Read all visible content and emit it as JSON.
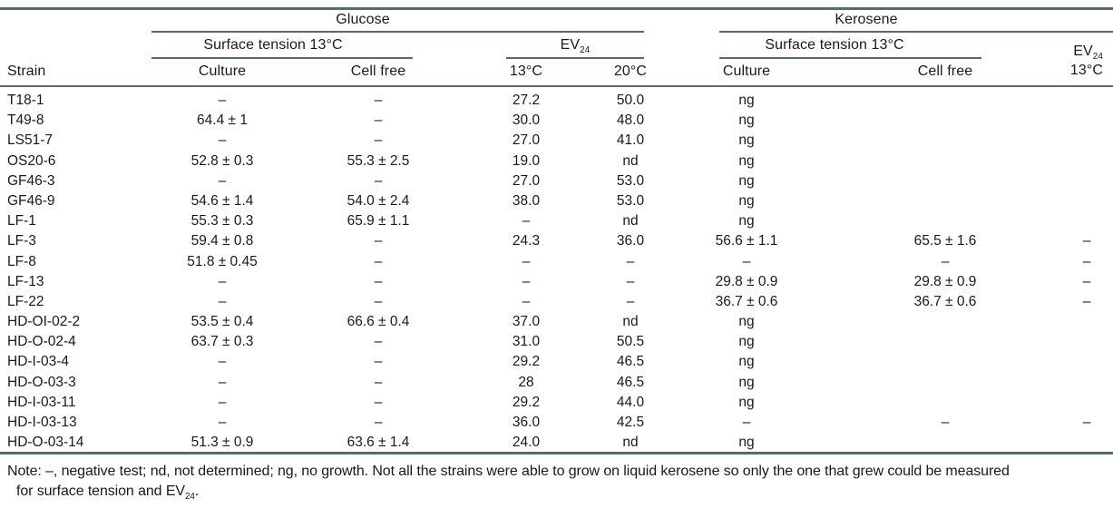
{
  "colors": {
    "rule": "#53705e",
    "text": "#1a1a18",
    "background": "#ffffff"
  },
  "table": {
    "groups": {
      "glucose": "Glucose",
      "kerosene": "Kerosene"
    },
    "subheaders": {
      "surface_tension_glucose": "Surface tension 13°C",
      "surface_tension_kerosene": "Surface tension 13°C",
      "ev": "EV",
      "ev_sub": "24",
      "ev_kerosene_temp": "13°C"
    },
    "columns": {
      "strain": "Strain",
      "culture_glucose": "Culture",
      "cellfree_glucose": "Cell free",
      "temp13": "13°C",
      "temp20": "20°C",
      "culture_kerosene": "Culture",
      "cellfree_kerosene": "Cell free"
    },
    "rows": [
      [
        "T18-1",
        "–",
        "–",
        "27.2",
        "50.0",
        "ng",
        "",
        ""
      ],
      [
        "T49-8",
        "64.4 ± 1",
        "–",
        "30.0",
        "48.0",
        "ng",
        "",
        ""
      ],
      [
        "LS51-7",
        "–",
        "–",
        "27.0",
        "41.0",
        "ng",
        "",
        ""
      ],
      [
        "OS20-6",
        "52.8 ± 0.3",
        "55.3 ± 2.5",
        "19.0",
        "nd",
        "ng",
        "",
        ""
      ],
      [
        "GF46-3",
        "–",
        "–",
        "27.0",
        "53.0",
        "ng",
        "",
        ""
      ],
      [
        "GF46-9",
        "54.6 ± 1.4",
        "54.0 ± 2.4",
        "38.0",
        "53.0",
        "ng",
        "",
        ""
      ],
      [
        "LF-1",
        "55.3 ± 0.3",
        "65.9 ± 1.1",
        "–",
        "nd",
        "ng",
        "",
        ""
      ],
      [
        "LF-3",
        "59.4 ± 0.8",
        "–",
        "24.3",
        "36.0",
        "56.6 ± 1.1",
        "65.5 ± 1.6",
        "–"
      ],
      [
        "LF-8",
        "51.8 ± 0.45",
        "–",
        "–",
        "–",
        "–",
        "–",
        "–"
      ],
      [
        "LF-13",
        "–",
        "–",
        "–",
        "–",
        "29.8 ± 0.9",
        "29.8 ± 0.9",
        "–"
      ],
      [
        "LF-22",
        "–",
        "–",
        "–",
        "–",
        "36.7 ± 0.6",
        "36.7 ± 0.6",
        "–"
      ],
      [
        "HD-OI-02-2",
        "53.5 ± 0.4",
        "66.6 ± 0.4",
        "37.0",
        "nd",
        "ng",
        "",
        ""
      ],
      [
        "HD-O-02-4",
        "63.7 ± 0.3",
        "–",
        "31.0",
        "50.5",
        "ng",
        "",
        ""
      ],
      [
        "HD-I-03-4",
        "–",
        "–",
        "29.2",
        "46.5",
        "ng",
        "",
        ""
      ],
      [
        "HD-O-03-3",
        "–",
        "–",
        "28",
        "46.5",
        "ng",
        "",
        ""
      ],
      [
        "HD-I-03-11",
        "–",
        "–",
        "29.2",
        "44.0",
        "ng",
        "",
        ""
      ],
      [
        "HD-I-03-13",
        "–",
        "–",
        "36.0",
        "42.5",
        "–",
        "–",
        "–"
      ],
      [
        "HD-O-03-14",
        "51.3 ± 0.9",
        "63.6 ± 1.4",
        "24.0",
        "nd",
        "ng",
        "",
        ""
      ]
    ]
  },
  "note": {
    "line1": "Note: –, negative test; nd, not determined; ng, no growth. Not all the strains were able to grow on liquid kerosene so only the one that grew could be measured",
    "line2_pre": "for surface tension and ",
    "ev": "EV",
    "ev_sub": "24",
    "period": "."
  }
}
